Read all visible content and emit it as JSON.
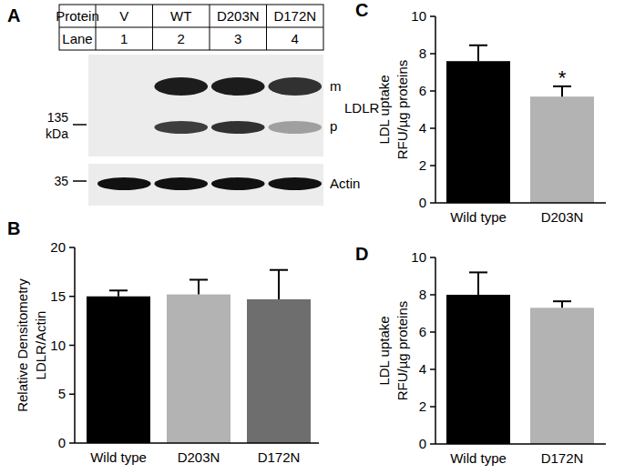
{
  "blot": {
    "panel": "A",
    "table": {
      "rows": [
        [
          "Protein",
          "V",
          "WT",
          "D203N",
          "D172N"
        ],
        [
          "Lane",
          "1",
          "2",
          "3",
          "4"
        ]
      ]
    },
    "markers": [
      {
        "label": "135",
        "unit": "kDa"
      },
      {
        "label": "35"
      }
    ],
    "group_label": "LDLR",
    "bands": [
      {
        "label": "m",
        "intensities": [
          0,
          0.95,
          0.95,
          0.85
        ]
      },
      {
        "label": "p",
        "intensities": [
          0,
          0.8,
          0.85,
          0.35
        ]
      },
      {
        "label": "Actin",
        "intensities": [
          1,
          1,
          1,
          1
        ]
      }
    ]
  },
  "chart_data": [
    {
      "panel": "B",
      "type": "bar",
      "y_label": [
        "Relative Densitometry",
        "LDLR/Actin"
      ],
      "categories": [
        "Wild type",
        "D203N",
        "D172N"
      ],
      "values": [
        15.0,
        15.2,
        14.7
      ],
      "errors": [
        0.6,
        1.5,
        3.0
      ],
      "colors": [
        "#000000",
        "#b3b3b3",
        "#6e6e6e"
      ],
      "ylim": [
        0,
        20
      ],
      "yticks": [
        0,
        5,
        10,
        15,
        20
      ]
    },
    {
      "panel": "C",
      "type": "bar",
      "y_label": [
        "LDL uptake",
        "RFU/µg proteins"
      ],
      "categories": [
        "Wild type",
        "D203N"
      ],
      "values": [
        7.6,
        5.7
      ],
      "errors": [
        0.85,
        0.55
      ],
      "colors": [
        "#000000",
        "#b3b3b3"
      ],
      "ylim": [
        0,
        10
      ],
      "yticks": [
        0,
        2,
        4,
        6,
        8,
        10
      ],
      "annotations": [
        {
          "text": "*",
          "category": "D203N"
        }
      ]
    },
    {
      "panel": "D",
      "type": "bar",
      "y_label": [
        "LDL uptake",
        "RFU/µg proteins"
      ],
      "categories": [
        "Wild type",
        "D172N"
      ],
      "values": [
        8.0,
        7.3
      ],
      "errors": [
        1.2,
        0.35
      ],
      "colors": [
        "#000000",
        "#b3b3b3"
      ],
      "ylim": [
        0,
        10
      ],
      "yticks": [
        0,
        2,
        4,
        6,
        8,
        10
      ]
    }
  ]
}
